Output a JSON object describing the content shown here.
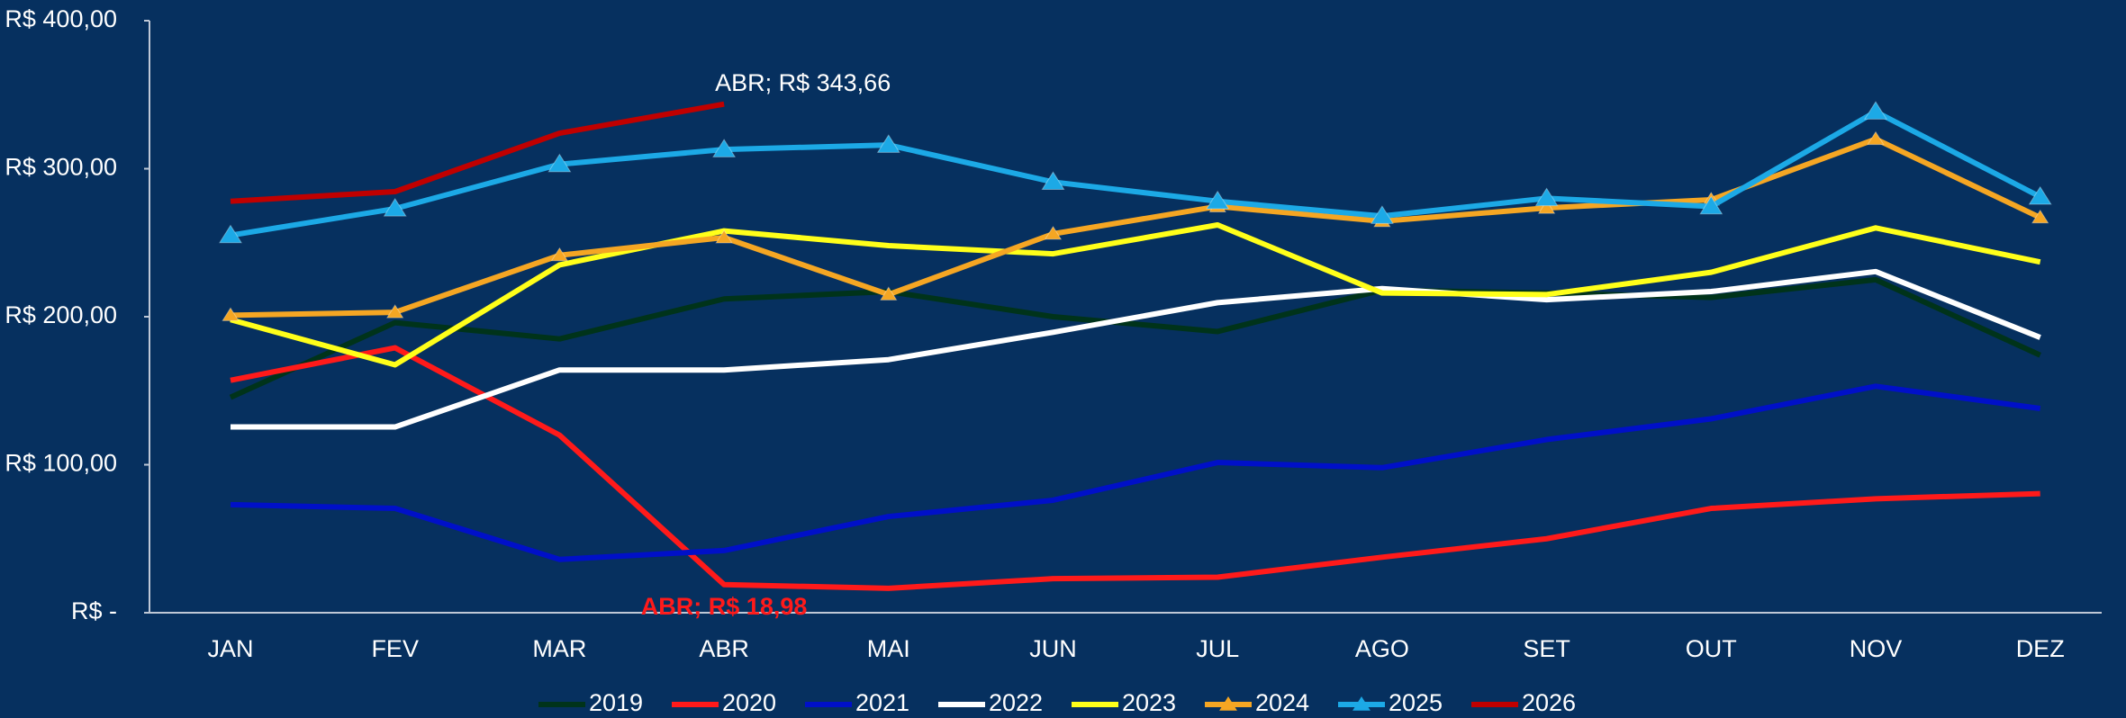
{
  "chart_data": {
    "type": "line",
    "categories": [
      "JAN",
      "FEV",
      "MAR",
      "ABR",
      "MAI",
      "JUN",
      "JUL",
      "AGO",
      "SET",
      "OUT",
      "NOV",
      "DEZ"
    ],
    "ylim": [
      0,
      400
    ],
    "yticks": [
      {
        "value": 0,
        "label": "R$ -"
      },
      {
        "value": 100,
        "label": "R$ 100,00"
      },
      {
        "value": 200,
        "label": "R$ 200,00"
      },
      {
        "value": 300,
        "label": "R$ 300,00"
      },
      {
        "value": 400,
        "label": "R$ 400,00"
      }
    ],
    "grid": false,
    "legend": "bottom",
    "series": [
      {
        "name": "2019",
        "color": "#00331a",
        "values": [
          145.5,
          196,
          185,
          212,
          217,
          200,
          190,
          218,
          216,
          213,
          225,
          174
        ]
      },
      {
        "name": "2020",
        "color": "#ff1a1a",
        "values": [
          157,
          179,
          120,
          18.98,
          16.5,
          23,
          24,
          37.5,
          50,
          70.5,
          77,
          80.5
        ],
        "value_labels": [
          null,
          null,
          null,
          "ABR;  R$ 18,98",
          null,
          null,
          null,
          null,
          null,
          null,
          null,
          null
        ]
      },
      {
        "name": "2021",
        "color": "#0010c8",
        "values": [
          73,
          70.5,
          36,
          42,
          65,
          76,
          101.5,
          98,
          117,
          131,
          153,
          138
        ]
      },
      {
        "name": "2022",
        "color": "#ffffff",
        "values": [
          125.5,
          125.5,
          164,
          164,
          171,
          189.5,
          209.5,
          219,
          211.5,
          217,
          230.5,
          186
        ]
      },
      {
        "name": "2023",
        "color": "#ffff1a",
        "values": [
          198,
          167.5,
          235,
          258,
          248,
          242.5,
          262,
          216,
          215,
          230,
          260,
          237
        ]
      },
      {
        "name": "2024",
        "color": "#f5a623",
        "marker": "triangle",
        "values": [
          201,
          203,
          241.5,
          253.5,
          215,
          256,
          274.5,
          264.5,
          273.5,
          279,
          320,
          267
        ]
      },
      {
        "name": "2025",
        "color": "#1ca9e6",
        "marker": "triangle",
        "values": [
          255,
          273,
          303,
          313,
          316,
          291,
          278,
          268,
          280,
          274.5,
          338.5,
          281
        ]
      },
      {
        "name": "2026",
        "color": "#c00000",
        "values": [
          278,
          284.5,
          324,
          343.66,
          null,
          null,
          null,
          null,
          null,
          null,
          null,
          null
        ],
        "value_labels": [
          null,
          null,
          null,
          "ABR;  R$ 343,66",
          null,
          null,
          null,
          null,
          null,
          null,
          null,
          null
        ]
      }
    ]
  }
}
